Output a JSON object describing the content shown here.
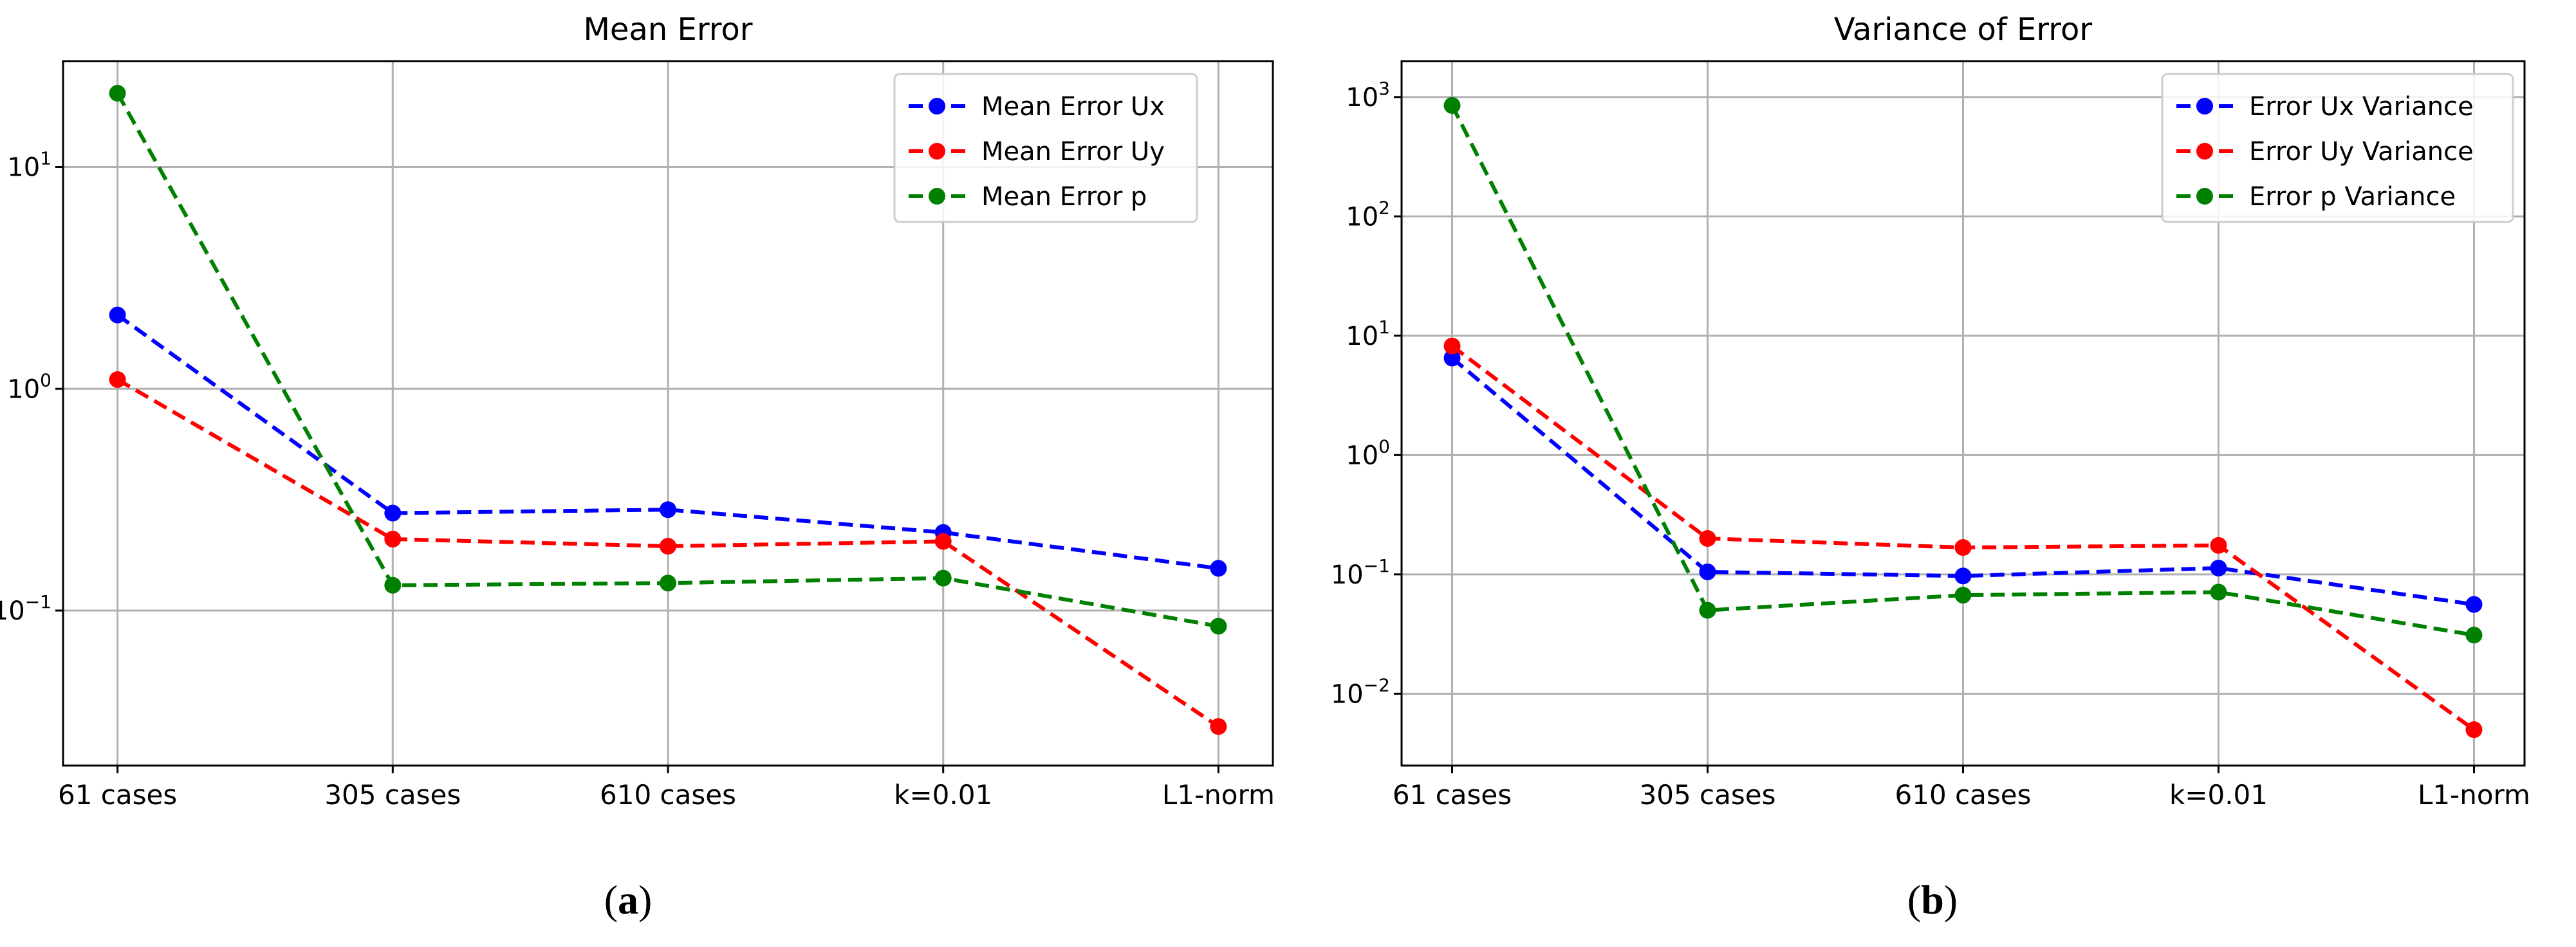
{
  "chart_data": [
    {
      "type": "line",
      "title": "Mean Error",
      "xlabel": "",
      "ylabel": "",
      "yscale": "log",
      "ylim": [
        0.02,
        30
      ],
      "yticks": [
        {
          "value": 0.1,
          "label": "10",
          "exp": "−1"
        },
        {
          "value": 1,
          "label": "10",
          "exp": "0"
        },
        {
          "value": 10,
          "label": "10",
          "exp": "1"
        }
      ],
      "categories": [
        "61 cases",
        "305 cases",
        "610 cases",
        "k=0.01",
        "L1-norm"
      ],
      "grid": true,
      "legend_position": "top-right",
      "line_style": "dashed",
      "marker": "circle",
      "series": [
        {
          "name": "Mean Error Ux",
          "color": "#0000ff",
          "values": [
            2.15,
            0.275,
            0.285,
            0.225,
            0.155
          ]
        },
        {
          "name": "Mean Error Uy",
          "color": "#ff0000",
          "values": [
            1.1,
            0.21,
            0.195,
            0.205,
            0.03
          ]
        },
        {
          "name": "Mean Error p",
          "color": "#008000",
          "values": [
            21.5,
            0.13,
            0.133,
            0.14,
            0.085
          ]
        }
      ],
      "sublabel": {
        "open": "(",
        "letter": "a",
        "close": ")"
      }
    },
    {
      "type": "line",
      "title": "Variance of Error",
      "xlabel": "",
      "ylabel": "",
      "yscale": "log",
      "ylim": [
        0.0025,
        2000
      ],
      "yticks": [
        {
          "value": 0.01,
          "label": "10",
          "exp": "−2"
        },
        {
          "value": 0.1,
          "label": "10",
          "exp": "−1"
        },
        {
          "value": 1,
          "label": "10",
          "exp": "0"
        },
        {
          "value": 10,
          "label": "10",
          "exp": "1"
        },
        {
          "value": 100,
          "label": "10",
          "exp": "2"
        },
        {
          "value": 1000,
          "label": "10",
          "exp": "3"
        }
      ],
      "categories": [
        "61 cases",
        "305 cases",
        "610 cases",
        "k=0.01",
        "L1-norm"
      ],
      "grid": true,
      "legend_position": "top-right",
      "line_style": "dashed",
      "marker": "circle",
      "series": [
        {
          "name": "Error Ux Variance",
          "color": "#0000ff",
          "values": [
            6.5,
            0.105,
            0.097,
            0.113,
            0.056
          ]
        },
        {
          "name": "Error Uy Variance",
          "color": "#ff0000",
          "values": [
            8.2,
            0.2,
            0.168,
            0.175,
            0.005
          ]
        },
        {
          "name": "Error p Variance",
          "color": "#008000",
          "values": [
            850,
            0.05,
            0.067,
            0.071,
            0.031
          ]
        }
      ],
      "sublabel": {
        "open": "(",
        "letter": "b",
        "close": ")"
      }
    }
  ]
}
